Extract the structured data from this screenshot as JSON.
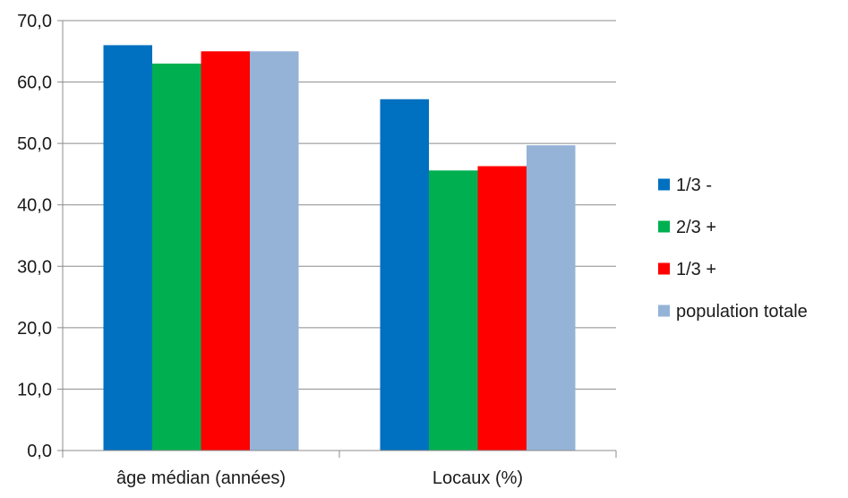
{
  "chart_data": {
    "type": "bar",
    "title": "",
    "xlabel": "",
    "ylabel": "",
    "categories": [
      "âge médian (années)",
      "Locaux (%)"
    ],
    "series": [
      {
        "name": "1/3 -",
        "color": "#0070C0",
        "values": [
          66.0,
          57.2
        ]
      },
      {
        "name": "2/3 +",
        "color": "#00B050",
        "values": [
          63.0,
          45.6
        ]
      },
      {
        "name": "1/3 +",
        "color": "#FF0000",
        "values": [
          65.0,
          46.3
        ]
      },
      {
        "name": "population totale",
        "color": "#95B3D7",
        "values": [
          65.0,
          49.7
        ]
      }
    ],
    "ylim": [
      0,
      70
    ],
    "yticks": [
      "0,0",
      "10,0",
      "20,0",
      "30,0",
      "40,0",
      "50,0",
      "60,0",
      "70,0"
    ],
    "ytick_step": 10,
    "grid": true,
    "legend_position": "right"
  }
}
